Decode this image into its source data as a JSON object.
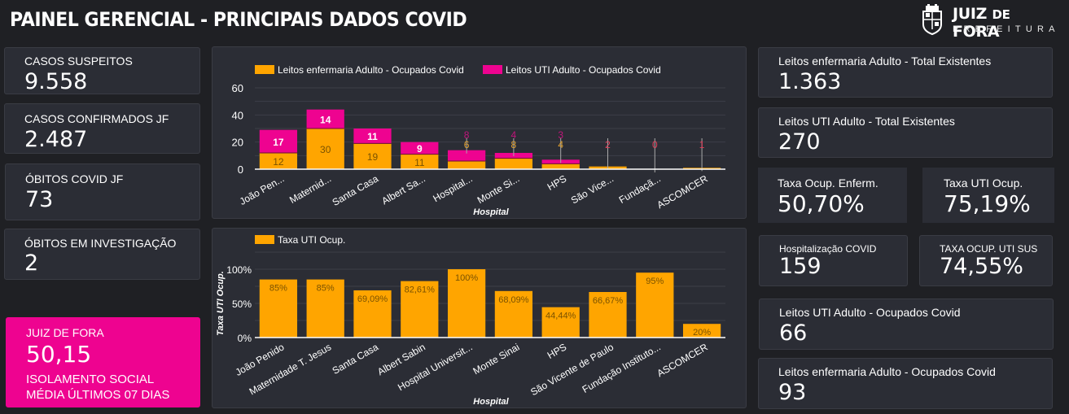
{
  "header": {
    "title": "PAINEL GERENCIAL - PRINCIPAIS DADOS COVID",
    "logo": {
      "icon": "city-crest-icon",
      "name_main": "JUIZ ",
      "name_small": "DE ",
      "name_end": "FORA",
      "subtitle": "PREFEITURA"
    }
  },
  "left_cards": [
    {
      "label": "CASOS SUSPEITOS",
      "value": "9.558"
    },
    {
      "label": "CASOS CONFIRMADOS JF",
      "value": "2.487"
    },
    {
      "label": "ÓBITOS COVID JF",
      "value": "73"
    },
    {
      "label": "ÓBITOS EM INVESTIGAÇÃO",
      "value": "2"
    }
  ],
  "isolation_card": {
    "label": "JUIZ DE FORA",
    "value": "50,15",
    "footer_line1": "ISOLAMENTO SOCIAL",
    "footer_line2": "MÉDIA ÚLTIMOS 07 DIAS",
    "color": "#ee0390"
  },
  "right_cards": {
    "enf_total": {
      "label": "Leitos enfermaria Adulto - Total Existentes",
      "value": "1.363"
    },
    "uti_total": {
      "label": "Leitos UTI Adulto - Total Existentes",
      "value": "270"
    },
    "taxa_enf": {
      "label": "Taxa Ocup. Enferm.",
      "value": "50,70%"
    },
    "taxa_uti": {
      "label": "Taxa UTI Ocup.",
      "value": "75,19%"
    },
    "hospitalizacao": {
      "label": "Hospitalização COVID",
      "value": "159"
    },
    "taxa_uti_sus": {
      "label": "TAXA OCUP. UTI SUS",
      "value": "74,55%"
    },
    "uti_ocupados": {
      "label": "Leitos UTI Adulto - Ocupados Covid",
      "value": "66"
    },
    "enf_ocupados": {
      "label": "Leitos enfermaria Adulto - Ocupados Covid",
      "value": "93"
    }
  },
  "chart_data": [
    {
      "type": "bar",
      "stacked": true,
      "title": "",
      "xlabel": "Hospital",
      "ylabel": "",
      "ylim": [
        0,
        60
      ],
      "yticks": [
        "0",
        "20",
        "40",
        "60"
      ],
      "grid": true,
      "legend": "top-left",
      "categories": [
        "João Pen...",
        "Maternid...",
        "Santa Casa",
        "Albert Sa...",
        "Hospital...",
        "Monte Si...",
        "HPS",
        "São Vice...",
        "Fundaçã...",
        "ASCOMCER"
      ],
      "series": [
        {
          "name": "Leitos enfermaria Adulto - Ocupados Covid",
          "color": "#ffa500",
          "values": [
            12,
            30,
            19,
            11,
            6,
            8,
            4,
            2,
            0,
            1
          ]
        },
        {
          "name": "Leitos UTI Adulto - Ocupados Covid",
          "color": "#ee0390",
          "values": [
            17,
            14,
            11,
            9,
            8,
            4,
            3,
            0,
            0,
            0
          ]
        }
      ]
    },
    {
      "type": "bar",
      "title": "",
      "xlabel": "Hospital",
      "ylabel": "Taxa UTI Ocup.",
      "ylim": [
        0,
        125
      ],
      "yticks": [
        "0%",
        "50%",
        "100%"
      ],
      "grid": true,
      "legend": "top-left",
      "categories": [
        "João Penido",
        "Maternidade T. Jesus",
        "Santa Casa",
        "Albert Sabin",
        "Hospital Universit...",
        "Monte Sinai",
        "HPS",
        "São Vicente de Paulo",
        "Fundação Instituto...",
        "ASCOMCER"
      ],
      "series": [
        {
          "name": "Taxa UTI Ocup.",
          "color": "#ffa500",
          "values": [
            85,
            85,
            69.09,
            82.61,
            100,
            68.09,
            44.44,
            66.67,
            95,
            20
          ],
          "labels": [
            "85%",
            "85%",
            "69,09%",
            "82,61%",
            "100%",
            "68,09%",
            "44,44%",
            "66,67%",
            "95%",
            "20%"
          ]
        }
      ]
    }
  ]
}
